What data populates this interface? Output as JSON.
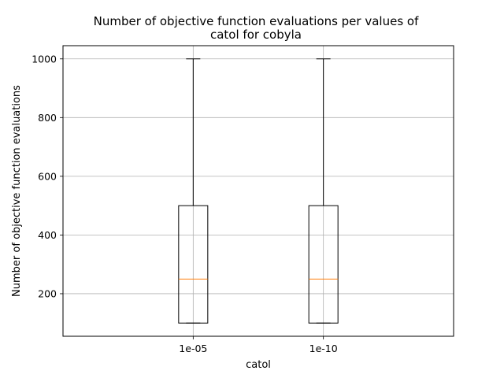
{
  "chart_data": {
    "type": "box",
    "title_lines": [
      "Number of objective function evaluations per values of",
      "catol for cobyla"
    ],
    "xlabel": "catol",
    "ylabel": "Number of objective function evaluations",
    "categories": [
      "1e-05",
      "1e-10"
    ],
    "boxes": [
      {
        "category": "1e-05",
        "whisker_low": 100,
        "q1": 100,
        "median": 250,
        "q3": 500,
        "whisker_high": 1000
      },
      {
        "category": "1e-10",
        "whisker_low": 100,
        "q1": 100,
        "median": 250,
        "q3": 500,
        "whisker_high": 1000
      }
    ],
    "ylim": [
      55,
      1045
    ],
    "yticks": [
      200,
      400,
      600,
      800,
      1000
    ],
    "grid": true,
    "colors": {
      "box": "#000000",
      "median": "#ff7f0e",
      "grid": "#b0b0b0"
    }
  }
}
